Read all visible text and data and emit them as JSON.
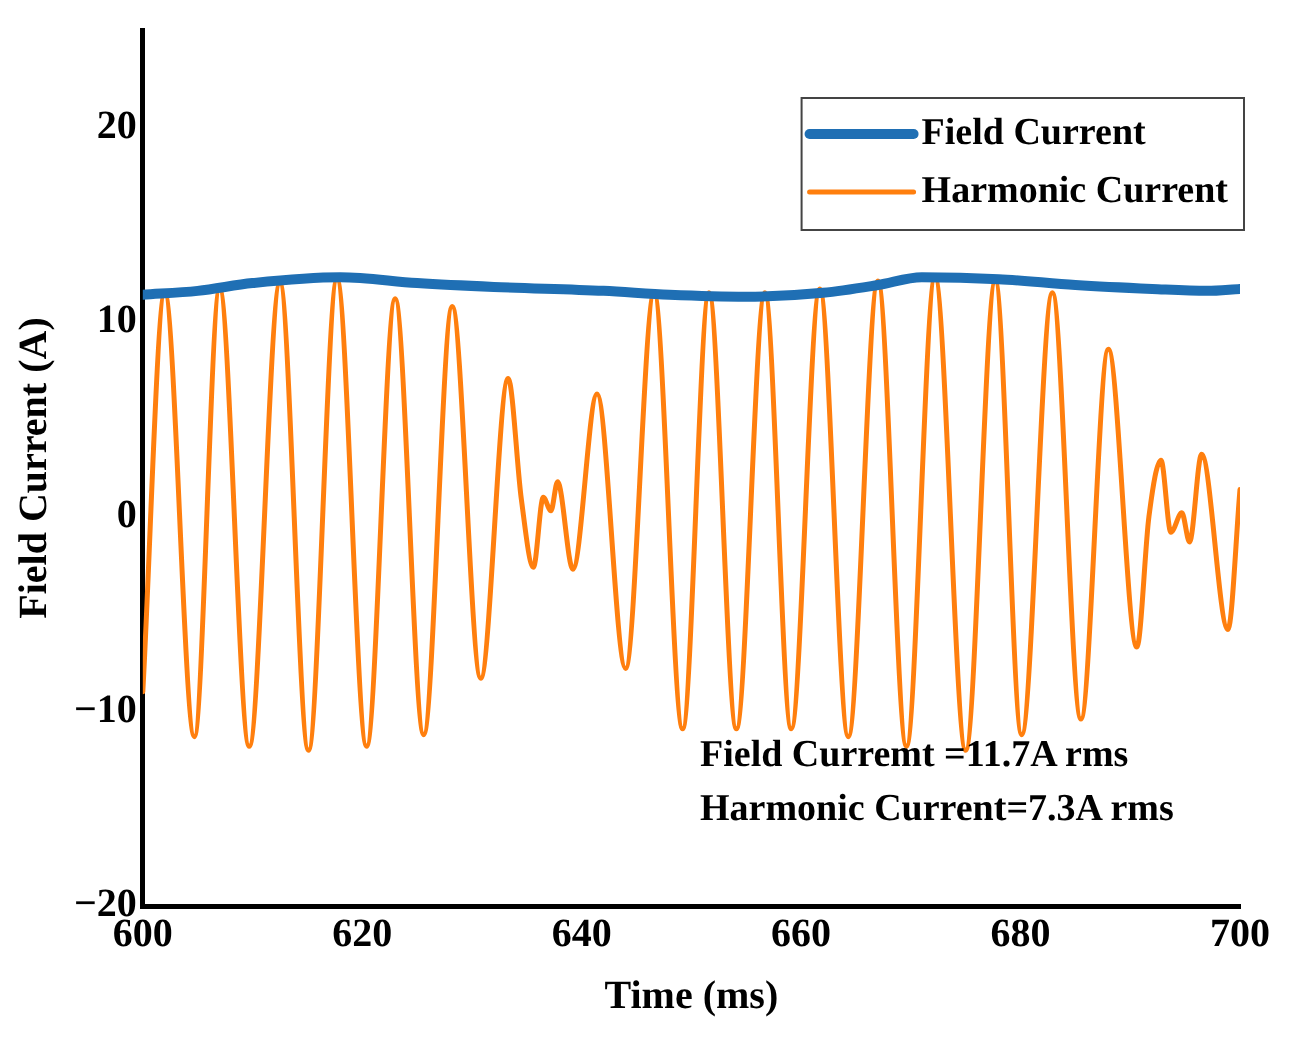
{
  "chart_data": {
    "type": "line",
    "xlabel": "Time (ms)",
    "ylabel": "Field Current (A)",
    "xlim": [
      600,
      700
    ],
    "xticks": [
      600,
      620,
      640,
      660,
      680,
      700
    ],
    "ylim": [
      -20,
      25
    ],
    "yticks": [
      -20,
      -10,
      0,
      10,
      20
    ],
    "grid": false,
    "legend": "top right",
    "marker": "none",
    "line_style": "solid",
    "annotations": [
      "Field Curremt =11.7A rms",
      "Harmonic Current=7.3A rms"
    ],
    "series": [
      {
        "name": "Field Current",
        "color": "#1f6fb4",
        "x": [
          600,
          605,
          610,
          618,
          625,
          632,
          642,
          648,
          655,
          662,
          667,
          671,
          678,
          685,
          692,
          697,
          700
        ],
        "values": [
          11.4,
          11.6,
          12.0,
          12.3,
          12.0,
          11.8,
          11.6,
          11.4,
          11.3,
          11.5,
          11.9,
          12.3,
          12.2,
          11.9,
          11.7,
          11.6,
          11.7
        ]
      },
      {
        "name": "Harmonic Current",
        "color": "#ff7f0e",
        "x": [
          600,
          602.0,
          604.7,
          607.0,
          609.7,
          612.5,
          615.1,
          617.7,
          620.4,
          623.0,
          625.6,
          628.2,
          630.8,
          633.3,
          634.5,
          635.6,
          636.5,
          637.2,
          637.8,
          639.2,
          641.4,
          644.0,
          646.6,
          649.2,
          651.6,
          654.1,
          656.7,
          659.1,
          661.7,
          664.3,
          667.0,
          669.6,
          672.2,
          675.0,
          677.7,
          680.1,
          682.9,
          685.5,
          688.0,
          690.6,
          691.7,
          692.8,
          693.7,
          694.7,
          695.4,
          696.5,
          698.9,
          700
        ],
        "values": [
          -9,
          11.5,
          -11.3,
          11.7,
          -11.8,
          12.0,
          -12.0,
          12.2,
          -11.8,
          11.2,
          -11.2,
          10.8,
          -8.3,
          7.1,
          0.9,
          -2.6,
          1.0,
          0.3,
          1.8,
          -2.7,
          6.3,
          -7.8,
          11.5,
          -10.9,
          11.5,
          -10.9,
          11.5,
          -10.9,
          11.7,
          -11.3,
          12.1,
          -11.8,
          12.3,
          -12.0,
          12.1,
          -11.2,
          11.5,
          -10.4,
          8.6,
          -6.7,
          0.0,
          2.9,
          -0.8,
          0.2,
          -1.3,
          3.2,
          -5.8,
          1.4
        ]
      }
    ]
  }
}
